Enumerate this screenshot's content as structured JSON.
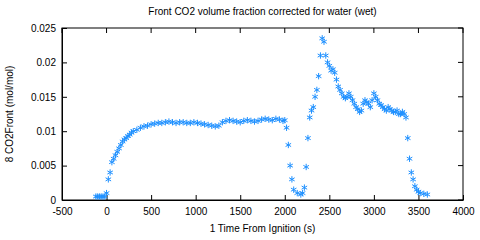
{
  "chart_data": {
    "type": "scatter",
    "title": "Front CO2 volume fraction corrected for water (wet)",
    "x_label": "1 Time From Ignition (s)",
    "y_label": "8 CO2Front (mol/mol)",
    "xlim": [
      -500,
      4000
    ],
    "xticks": [
      -500,
      0,
      500,
      1000,
      1500,
      2000,
      2500,
      3000,
      3500,
      4000
    ],
    "ylim": [
      0,
      0.025
    ],
    "yticks": [
      0,
      0.005,
      0.01,
      0.015,
      0.02,
      0.025
    ],
    "grid": false,
    "x": [
      -120,
      -100,
      -80,
      -60,
      -40,
      -20,
      0,
      20,
      40,
      60,
      80,
      100,
      120,
      140,
      160,
      180,
      200,
      220,
      240,
      260,
      280,
      300,
      340,
      380,
      420,
      460,
      500,
      540,
      580,
      620,
      660,
      700,
      740,
      780,
      820,
      860,
      900,
      940,
      980,
      1020,
      1060,
      1100,
      1140,
      1180,
      1220,
      1260,
      1300,
      1340,
      1380,
      1420,
      1460,
      1500,
      1540,
      1580,
      1620,
      1660,
      1700,
      1740,
      1780,
      1820,
      1860,
      1900,
      1940,
      1980,
      2000,
      2020,
      2040,
      2060,
      2080,
      2100,
      2140,
      2180,
      2200,
      2220,
      2240,
      2260,
      2280,
      2300,
      2320,
      2340,
      2360,
      2380,
      2400,
      2420,
      2440,
      2460,
      2480,
      2500,
      2520,
      2540,
      2560,
      2580,
      2600,
      2620,
      2640,
      2660,
      2680,
      2700,
      2720,
      2740,
      2760,
      2780,
      2800,
      2820,
      2840,
      2860,
      2880,
      2900,
      2920,
      2940,
      2960,
      2980,
      3000,
      3020,
      3040,
      3060,
      3080,
      3100,
      3120,
      3140,
      3160,
      3180,
      3200,
      3220,
      3240,
      3260,
      3280,
      3300,
      3320,
      3340,
      3360,
      3380,
      3400,
      3420,
      3440,
      3460,
      3480,
      3500,
      3520,
      3560,
      3600
    ],
    "series": [
      {
        "name": "8 CO2Front",
        "color": "#1e90ff",
        "marker": "asterisk",
        "values": [
          0.0005,
          0.0005,
          0.0005,
          0.0005,
          0.0005,
          0.0005,
          0.001,
          0.003,
          0.004,
          0.0055,
          0.006,
          0.0065,
          0.007,
          0.0075,
          0.008,
          0.0085,
          0.0088,
          0.009,
          0.0093,
          0.0095,
          0.0098,
          0.01,
          0.0102,
          0.0105,
          0.0107,
          0.0108,
          0.011,
          0.0111,
          0.0112,
          0.0112,
          0.0113,
          0.0114,
          0.0113,
          0.0112,
          0.0113,
          0.0113,
          0.0112,
          0.0112,
          0.0113,
          0.0112,
          0.0111,
          0.011,
          0.0109,
          0.0108,
          0.0107,
          0.0108,
          0.0113,
          0.0115,
          0.0116,
          0.0115,
          0.0114,
          0.0113,
          0.0115,
          0.0116,
          0.0115,
          0.0114,
          0.0115,
          0.0117,
          0.0118,
          0.0117,
          0.0116,
          0.0118,
          0.0117,
          0.0115,
          0.0116,
          0.0105,
          0.008,
          0.005,
          0.003,
          0.0015,
          0.001,
          0.0008,
          0.001,
          0.0018,
          0.0048,
          0.009,
          0.012,
          0.013,
          0.0135,
          0.015,
          0.016,
          0.018,
          0.021,
          0.0235,
          0.023,
          0.021,
          0.02,
          0.0195,
          0.0188,
          0.019,
          0.0185,
          0.0175,
          0.0165,
          0.016,
          0.0155,
          0.015,
          0.0148,
          0.015,
          0.0155,
          0.015,
          0.0145,
          0.014,
          0.0135,
          0.0132,
          0.0128,
          0.013,
          0.014,
          0.0145,
          0.0142,
          0.014,
          0.0135,
          0.0145,
          0.0155,
          0.015,
          0.0145,
          0.014,
          0.0138,
          0.0135,
          0.0132,
          0.013,
          0.0135,
          0.0132,
          0.013,
          0.0128,
          0.0128,
          0.013,
          0.0125,
          0.0125,
          0.0128,
          0.0125,
          0.012,
          0.009,
          0.006,
          0.004,
          0.003,
          0.002,
          0.0015,
          0.0012,
          0.001,
          0.0009,
          0.0008
        ]
      }
    ]
  }
}
